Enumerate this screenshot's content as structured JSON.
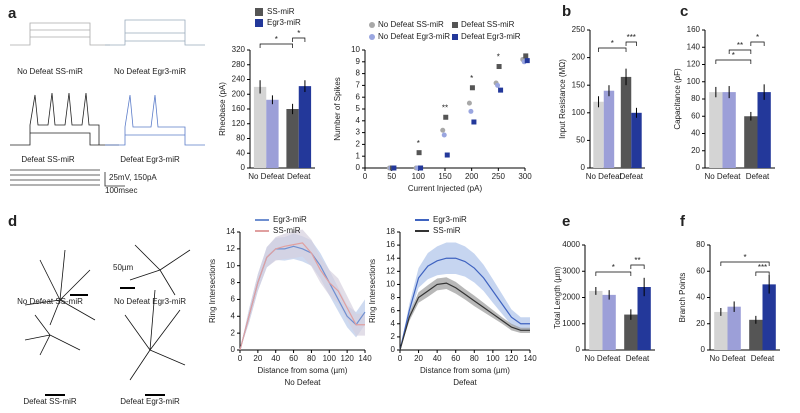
{
  "figure": {
    "panel_letters": [
      "a",
      "b",
      "c",
      "d",
      "e",
      "f"
    ],
    "trace_labels": [
      "No Defeat SS-miR",
      "No Defeat Egr3-miR",
      "Defeat SS-miR",
      "Defeat Egr3-miR"
    ],
    "scale_bars": [
      "25mV, 150pA",
      "100msec",
      "50µm"
    ],
    "neuron_labels": [
      "No Defeat SS-miR",
      "No Defeat Egr3-miR",
      "Defeat SS-miR",
      "Defeat Egr3-miR"
    ]
  },
  "chart_data": [
    {
      "type": "bar",
      "ylabel": "Rheobase (pA)",
      "categories": [
        "No Defeat",
        "Defeat"
      ],
      "legend": true,
      "series": [
        {
          "name": "SS-miR",
          "colors": [
            "#d4d4d4",
            "#555555"
          ],
          "values": [
            220,
            160
          ],
          "errors": [
            18,
            14
          ]
        },
        {
          "name": "Egr3-miR",
          "colors": [
            "#9c9fd8",
            "#23389a"
          ],
          "values": [
            185,
            222
          ],
          "errors": [
            12,
            16
          ]
        }
      ],
      "ylim": [
        0,
        320
      ],
      "yticks": [
        0,
        40,
        80,
        120,
        160,
        200,
        240,
        280,
        320
      ],
      "annotations": [
        "*",
        "*"
      ]
    },
    {
      "type": "scatter",
      "xlabel": "Current Injected (pA)",
      "ylabel": "Number of Spikes",
      "x": [
        50,
        100,
        150,
        200,
        250,
        300
      ],
      "series": [
        {
          "name": "No Defeat SS-miR",
          "color": "#a8a8a8",
          "marker": "circle",
          "values": [
            0,
            0,
            3.2,
            5.5,
            7.2,
            9.2
          ]
        },
        {
          "name": "No Defeat Egr3-miR",
          "color": "#9aa6e0",
          "marker": "circle",
          "values": [
            0,
            0,
            2.8,
            4.8,
            7,
            9
          ]
        },
        {
          "name": "Defeat SS-miR",
          "color": "#555555",
          "marker": "square",
          "values": [
            0,
            1.3,
            4.3,
            6.8,
            8.6,
            9.5
          ]
        },
        {
          "name": "Defeat Egr3-miR",
          "color": "#23389a",
          "marker": "square",
          "values": [
            0,
            0,
            1.1,
            3.9,
            6.6,
            9.1
          ]
        }
      ],
      "xlim": [
        0,
        300
      ],
      "xticks": [
        0,
        50,
        100,
        150,
        200,
        250,
        300
      ],
      "ylim": [
        0,
        10
      ],
      "yticks": [
        0,
        1,
        2,
        3,
        4,
        5,
        6,
        7,
        8,
        9,
        10
      ],
      "annotations": [
        {
          "text": "*",
          "x": 100
        },
        {
          "text": "**",
          "x": 150
        },
        {
          "text": "*",
          "x": 200
        },
        {
          "text": "*",
          "x": 250
        }
      ]
    },
    {
      "type": "bar",
      "ylabel": "Input Resistance (MΩ)",
      "categories": [
        "No Defeat",
        "Defeat"
      ],
      "series": [
        {
          "name": "SS-miR",
          "colors": [
            "#d4d4d4",
            "#555555"
          ],
          "values": [
            120,
            165
          ],
          "errors": [
            10,
            15
          ]
        },
        {
          "name": "Egr3-miR",
          "colors": [
            "#9c9fd8",
            "#23389a"
          ],
          "values": [
            140,
            100
          ],
          "errors": [
            10,
            9
          ]
        }
      ],
      "ylim": [
        0,
        250
      ],
      "yticks": [
        0,
        50,
        100,
        150,
        200,
        250
      ],
      "annotations": [
        "*",
        "***"
      ]
    },
    {
      "type": "bar",
      "ylabel": "Capacitance (pF)",
      "categories": [
        "No Defeat",
        "Defeat"
      ],
      "series": [
        {
          "name": "SS-miR",
          "colors": [
            "#d4d4d4",
            "#555555"
          ],
          "values": [
            88,
            60
          ],
          "errors": [
            6,
            5
          ]
        },
        {
          "name": "Egr3-miR",
          "colors": [
            "#9c9fd8",
            "#23389a"
          ],
          "values": [
            88,
            88
          ],
          "errors": [
            7,
            9
          ]
        }
      ],
      "ylim": [
        0,
        160
      ],
      "yticks": [
        0,
        20,
        40,
        60,
        80,
        100,
        120,
        140,
        160
      ],
      "annotations": [
        "*",
        "**",
        "*"
      ]
    },
    {
      "type": "line",
      "ylabel": "Ring Intersections",
      "xlabel": "Distance from soma (µm)",
      "subtitle": "No Defeat",
      "legend": true,
      "x": [
        0,
        10,
        20,
        30,
        40,
        50,
        60,
        70,
        80,
        90,
        100,
        110,
        120,
        130,
        140
      ],
      "series": [
        {
          "name": "Egr3-miR",
          "color": "#6f8fd0",
          "band": "#b9cbea",
          "values": [
            0,
            4,
            8,
            11,
            12,
            12,
            12.3,
            12,
            11.5,
            10,
            8,
            6,
            4,
            3,
            4.5
          ],
          "errors": [
            0,
            0.8,
            1,
            1.2,
            1.3,
            1.4,
            1.5,
            1.5,
            1.5,
            1.5,
            1.5,
            1.4,
            1.3,
            1.5,
            1.5
          ]
        },
        {
          "name": "SS-miR",
          "color": "#e0a0a0",
          "band": "#d6d0de",
          "values": [
            0,
            4,
            8,
            11,
            12,
            12.3,
            12.5,
            12.7,
            11.5,
            9.5,
            8,
            7,
            5,
            3,
            3
          ],
          "errors": [
            0,
            0.8,
            1,
            1.2,
            1.4,
            1.5,
            1.6,
            1.6,
            1.6,
            1.5,
            1.5,
            1.5,
            1.4,
            1.3,
            1.3
          ]
        }
      ],
      "xlim": [
        0,
        140
      ],
      "xticks": [
        0,
        20,
        40,
        60,
        80,
        100,
        120,
        140
      ],
      "ylim": [
        0,
        14
      ],
      "yticks": [
        0,
        2,
        4,
        6,
        8,
        10,
        12,
        14
      ]
    },
    {
      "type": "line",
      "ylabel": "Ring Intersections",
      "xlabel": "Distance from soma (µm)",
      "subtitle": "Defeat",
      "legend": true,
      "x": [
        0,
        10,
        20,
        30,
        40,
        50,
        60,
        70,
        80,
        90,
        100,
        110,
        120,
        130,
        140
      ],
      "series": [
        {
          "name": "Egr3-miR",
          "color": "#3f63c0",
          "band": "#aec3ea",
          "values": [
            0,
            6,
            11,
            12.8,
            13.6,
            14,
            14,
            13.5,
            12.5,
            11,
            9,
            7,
            5,
            4,
            4
          ],
          "errors": [
            0,
            1,
            1.5,
            2,
            2.2,
            2.4,
            2.4,
            2.3,
            2.2,
            2,
            1.8,
            1.5,
            1.2,
            1,
            1
          ]
        },
        {
          "name": "SS-miR",
          "color": "#333333",
          "band": "#9a9a9a",
          "values": [
            0,
            5,
            8,
            9,
            10,
            10.2,
            9.5,
            8.5,
            7.5,
            6.5,
            5.5,
            4.5,
            3.5,
            3,
            3
          ],
          "errors": [
            0,
            0.6,
            0.8,
            0.9,
            0.9,
            0.9,
            0.9,
            0.8,
            0.8,
            0.7,
            0.6,
            0.5,
            0.5,
            0.4,
            0.4
          ]
        }
      ],
      "xlim": [
        0,
        140
      ],
      "xticks": [
        0,
        20,
        40,
        60,
        80,
        100,
        120,
        140
      ],
      "ylim": [
        0,
        18
      ],
      "yticks": [
        0,
        2,
        4,
        6,
        8,
        10,
        12,
        14,
        16,
        18
      ]
    },
    {
      "type": "bar",
      "ylabel": "Total Length (µm)",
      "categories": [
        "No Defeat",
        "Defeat"
      ],
      "series": [
        {
          "name": "SS-miR",
          "colors": [
            "#d4d4d4",
            "#555555"
          ],
          "values": [
            2250,
            1350
          ],
          "errors": [
            150,
            200
          ]
        },
        {
          "name": "Egr3-miR",
          "colors": [
            "#9c9fd8",
            "#23389a"
          ],
          "values": [
            2100,
            2400
          ],
          "errors": [
            180,
            350
          ]
        }
      ],
      "ylim": [
        0,
        4000
      ],
      "yticks": [
        0,
        1000,
        2000,
        3000,
        4000
      ],
      "annotations": [
        "*",
        "**"
      ]
    },
    {
      "type": "bar",
      "ylabel": "Branch Points",
      "categories": [
        "No Defeat",
        "Defeat"
      ],
      "series": [
        {
          "name": "SS-miR",
          "colors": [
            "#d4d4d4",
            "#555555"
          ],
          "values": [
            29,
            23
          ],
          "errors": [
            3,
            3
          ]
        },
        {
          "name": "Egr3-miR",
          "colors": [
            "#9c9fd8",
            "#23389a"
          ],
          "values": [
            33,
            50
          ],
          "errors": [
            4,
            7
          ]
        }
      ],
      "ylim": [
        0,
        80
      ],
      "yticks": [
        0,
        20,
        40,
        60,
        80
      ],
      "annotations": [
        "*",
        "***"
      ]
    }
  ]
}
